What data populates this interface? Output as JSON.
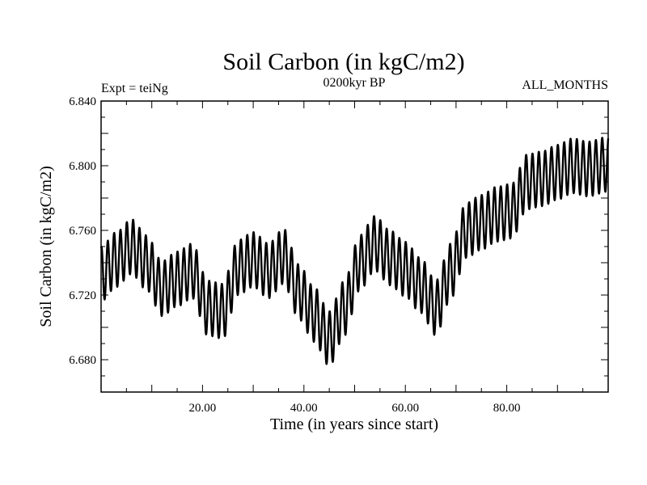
{
  "chart_data": {
    "type": "line",
    "title": "Soil Carbon (in kgC/m2)",
    "subtitle_left": "Expt = teiNg",
    "subtitle_center": "0200kyr BP",
    "subtitle_right": "ALL_MONTHS",
    "xlabel": "Time (in years since start)",
    "ylabel": "Soil Carbon (in kgC/m2)",
    "xlim": [
      0,
      100
    ],
    "ylim": [
      6.66,
      6.84
    ],
    "x_ticks": [
      20,
      40,
      60,
      80
    ],
    "x_tick_labels": [
      "20.00",
      "40.00",
      "60.00",
      "80.00"
    ],
    "y_ticks": [
      6.68,
      6.72,
      6.76,
      6.8,
      6.84
    ],
    "y_tick_labels": [
      "6.680",
      "6.720",
      "6.760",
      "6.800",
      "6.840"
    ],
    "series_color": "#000000",
    "envelope_x": [
      0,
      3,
      6,
      9,
      12,
      15,
      18,
      21,
      24,
      27,
      30,
      33,
      36,
      39,
      42,
      45,
      48,
      51,
      54,
      57,
      60,
      63,
      66,
      69,
      72,
      75,
      78,
      81,
      84,
      87,
      90,
      93,
      96,
      100
    ],
    "envelope_center": [
      6.733,
      6.742,
      6.75,
      6.74,
      6.724,
      6.73,
      6.735,
      6.712,
      6.71,
      6.737,
      6.742,
      6.735,
      6.744,
      6.722,
      6.708,
      6.693,
      6.712,
      6.74,
      6.752,
      6.743,
      6.736,
      6.726,
      6.712,
      6.735,
      6.76,
      6.765,
      6.77,
      6.772,
      6.79,
      6.792,
      6.796,
      6.8,
      6.798,
      6.801
    ],
    "amplitude": 0.017,
    "cycles_per_year": 0.8
  }
}
